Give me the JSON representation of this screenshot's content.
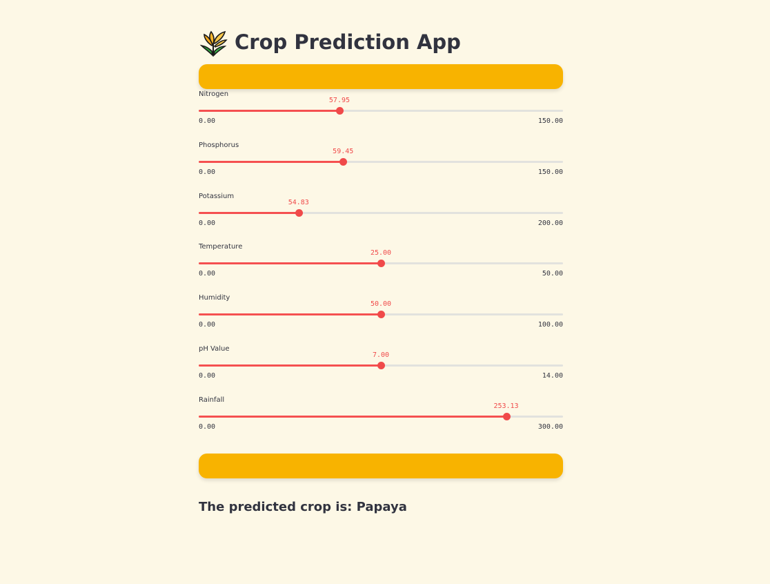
{
  "app": {
    "title": "Crop Prediction App",
    "title_icon": "sheaf-of-rice-icon"
  },
  "colors": {
    "background": "#fdf8e6",
    "banner": "#f8b300",
    "slider_accent": "#f04a4a",
    "track": "#e2e2de",
    "text": "#31333f"
  },
  "sliders": [
    {
      "label": "Nitrogen",
      "value": "57.95",
      "min": "0.00",
      "max": "150.00",
      "fraction": 0.3863
    },
    {
      "label": "Phosphorus",
      "value": "59.45",
      "min": "0.00",
      "max": "150.00",
      "fraction": 0.3963
    },
    {
      "label": "Potassium",
      "value": "54.83",
      "min": "0.00",
      "max": "200.00",
      "fraction": 0.2742
    },
    {
      "label": "Temperature",
      "value": "25.00",
      "min": "0.00",
      "max": "50.00",
      "fraction": 0.5
    },
    {
      "label": "Humidity",
      "value": "50.00",
      "min": "0.00",
      "max": "100.00",
      "fraction": 0.5
    },
    {
      "label": "pH Value",
      "value": "7.00",
      "min": "0.00",
      "max": "14.00",
      "fraction": 0.5
    },
    {
      "label": "Rainfall",
      "value": "253.13",
      "min": "0.00",
      "max": "300.00",
      "fraction": 0.8438
    }
  ],
  "result": {
    "text": "The predicted crop is: Papaya"
  }
}
